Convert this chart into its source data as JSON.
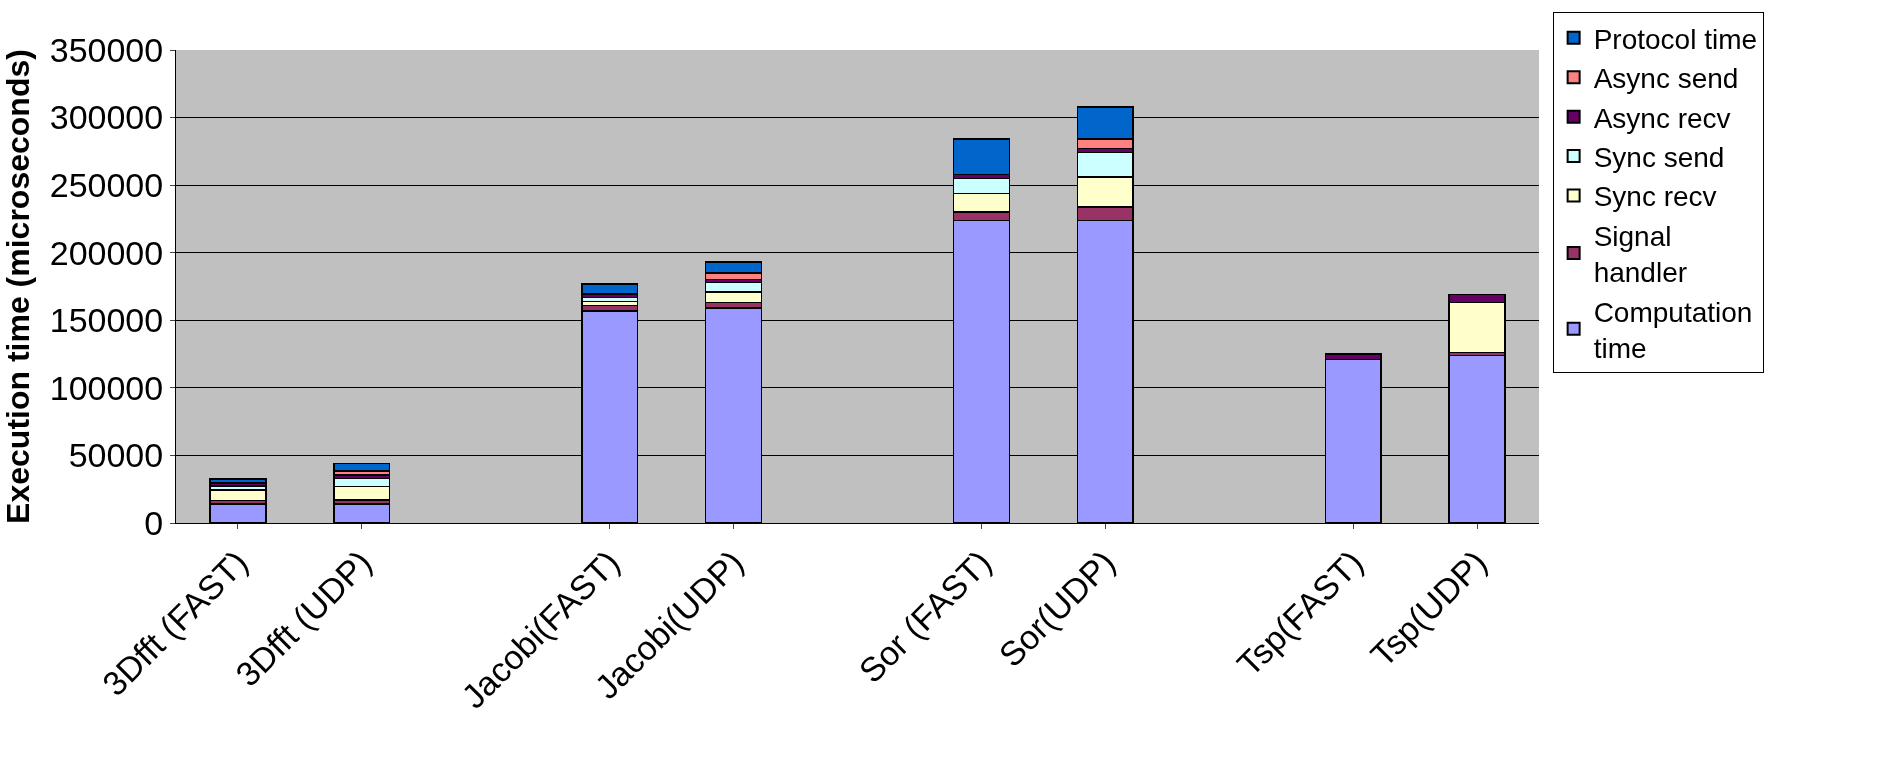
{
  "chart_data": {
    "type": "bar",
    "stacked": true,
    "ylabel": "Execution time (microseconds)",
    "categories": [
      "3Dfft (FAST)",
      "3Dfft (UDP)",
      null,
      "Jacobi(FAST)",
      "Jacobi(UDP)",
      null,
      "Sor (FAST)",
      "Sor(UDP)",
      null,
      "Tsp(FAST)",
      "Tsp(UDP)"
    ],
    "series": [
      {
        "name": "Computation\ntime",
        "color": "#9999ff",
        "values": [
          14000,
          14000,
          null,
          157000,
          159000,
          null,
          224000,
          224000,
          null,
          121000,
          124000
        ]
      },
      {
        "name": "Signal\nhandler",
        "color": "#993366",
        "values": [
          2500,
          3000,
          null,
          4000,
          4000,
          null,
          6000,
          10000,
          null,
          null,
          2000
        ]
      },
      {
        "name": "Sync recv",
        "color": "#ffffcc",
        "values": [
          8000,
          10000,
          null,
          3000,
          8000,
          null,
          14000,
          22000,
          null,
          null,
          37000
        ]
      },
      {
        "name": "Sync send",
        "color": "#ccffff",
        "values": [
          3000,
          6000,
          null,
          3000,
          7000,
          null,
          11000,
          18000,
          null,
          null,
          null
        ]
      },
      {
        "name": "Async recv",
        "color": "#660066",
        "values": [
          2000,
          2500,
          null,
          2500,
          2000,
          null,
          3000,
          3000,
          null,
          4000,
          6000
        ]
      },
      {
        "name": "Async send",
        "color": "#ff8080",
        "values": [
          null,
          3000,
          null,
          null,
          5000,
          null,
          null,
          7000,
          null,
          null,
          null
        ]
      },
      {
        "name": "Protocol time",
        "color": "#0066cc",
        "values": [
          3000,
          5500,
          null,
          7500,
          8000,
          null,
          26000,
          24000,
          null,
          null,
          null
        ]
      }
    ],
    "ylim": [
      0,
      350000
    ],
    "yticks": [
      0,
      50000,
      100000,
      150000,
      200000,
      250000,
      300000,
      350000
    ],
    "grid": "y",
    "legend": "right"
  }
}
